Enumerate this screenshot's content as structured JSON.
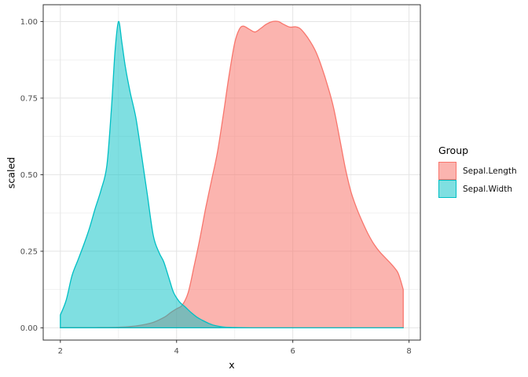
{
  "chart_data": {
    "type": "area",
    "title": "",
    "xlabel": "x",
    "ylabel": "scaled",
    "grid": true,
    "xlim": [
      1.705,
      8.195
    ],
    "ylim": [
      -0.04,
      1.055
    ],
    "x_ticks": [
      {
        "value": 2,
        "label": "2"
      },
      {
        "value": 4,
        "label": "4"
      },
      {
        "value": 6,
        "label": "6"
      },
      {
        "value": 8,
        "label": "8"
      }
    ],
    "x_minor": [
      3,
      5,
      7
    ],
    "y_ticks": [
      {
        "value": 1.0,
        "label": "1.00"
      },
      {
        "value": 0.75,
        "label": "0.75"
      },
      {
        "value": 0.5,
        "label": "0.50"
      },
      {
        "value": 0.25,
        "label": "0.25"
      },
      {
        "value": 0.0,
        "label": "0.00"
      }
    ],
    "y_minor": [
      0.875,
      0.625,
      0.375,
      0.125
    ],
    "legend": {
      "title": "Group",
      "position": "right",
      "entries": [
        {
          "label": "Sepal.Length",
          "stroke": "#F8766D",
          "fill": "rgba(248,118,109,0.55)"
        },
        {
          "label": "Sepal.Width",
          "stroke": "#00BFC4",
          "fill": "rgba(0,191,196,0.5)"
        }
      ]
    },
    "series": [
      {
        "name": "Sepal.Length",
        "stroke": "#F8766D",
        "fill": "rgba(248,118,109,0.55)",
        "points": [
          [
            2.0,
            0.001
          ],
          [
            2.6,
            0.001
          ],
          [
            3.0,
            0.002
          ],
          [
            3.2,
            0.004
          ],
          [
            3.4,
            0.009
          ],
          [
            3.6,
            0.018
          ],
          [
            3.8,
            0.036
          ],
          [
            3.9,
            0.05
          ],
          [
            4.0,
            0.062
          ],
          [
            4.1,
            0.075
          ],
          [
            4.2,
            0.115
          ],
          [
            4.3,
            0.2
          ],
          [
            4.4,
            0.29
          ],
          [
            4.5,
            0.39
          ],
          [
            4.6,
            0.48
          ],
          [
            4.7,
            0.57
          ],
          [
            4.8,
            0.69
          ],
          [
            4.9,
            0.82
          ],
          [
            5.0,
            0.93
          ],
          [
            5.08,
            0.975
          ],
          [
            5.15,
            0.985
          ],
          [
            5.25,
            0.975
          ],
          [
            5.35,
            0.966
          ],
          [
            5.45,
            0.978
          ],
          [
            5.55,
            0.992
          ],
          [
            5.65,
            1.0
          ],
          [
            5.75,
            1.0
          ],
          [
            5.85,
            0.99
          ],
          [
            5.95,
            0.982
          ],
          [
            6.05,
            0.983
          ],
          [
            6.12,
            0.978
          ],
          [
            6.2,
            0.962
          ],
          [
            6.3,
            0.935
          ],
          [
            6.4,
            0.9
          ],
          [
            6.5,
            0.85
          ],
          [
            6.6,
            0.79
          ],
          [
            6.7,
            0.72
          ],
          [
            6.8,
            0.625
          ],
          [
            6.9,
            0.525
          ],
          [
            7.0,
            0.445
          ],
          [
            7.1,
            0.39
          ],
          [
            7.2,
            0.345
          ],
          [
            7.3,
            0.305
          ],
          [
            7.4,
            0.272
          ],
          [
            7.5,
            0.247
          ],
          [
            7.6,
            0.227
          ],
          [
            7.7,
            0.207
          ],
          [
            7.8,
            0.183
          ],
          [
            7.85,
            0.158
          ],
          [
            7.9,
            0.125
          ]
        ]
      },
      {
        "name": "Sepal.Width",
        "stroke": "#00BFC4",
        "fill": "rgba(0,191,196,0.5)",
        "points": [
          [
            2.0,
            0.042
          ],
          [
            2.1,
            0.09
          ],
          [
            2.2,
            0.17
          ],
          [
            2.3,
            0.22
          ],
          [
            2.4,
            0.27
          ],
          [
            2.5,
            0.325
          ],
          [
            2.6,
            0.39
          ],
          [
            2.7,
            0.45
          ],
          [
            2.8,
            0.53
          ],
          [
            2.88,
            0.72
          ],
          [
            2.94,
            0.9
          ],
          [
            3.0,
            1.0
          ],
          [
            3.06,
            0.93
          ],
          [
            3.12,
            0.85
          ],
          [
            3.2,
            0.77
          ],
          [
            3.3,
            0.685
          ],
          [
            3.4,
            0.56
          ],
          [
            3.5,
            0.43
          ],
          [
            3.6,
            0.3
          ],
          [
            3.7,
            0.245
          ],
          [
            3.78,
            0.215
          ],
          [
            3.88,
            0.155
          ],
          [
            3.95,
            0.115
          ],
          [
            4.05,
            0.085
          ],
          [
            4.15,
            0.068
          ],
          [
            4.25,
            0.05
          ],
          [
            4.35,
            0.035
          ],
          [
            4.45,
            0.024
          ],
          [
            4.55,
            0.015
          ],
          [
            4.65,
            0.008
          ],
          [
            4.75,
            0.004
          ],
          [
            4.85,
            0.002
          ],
          [
            5.0,
            0.001
          ],
          [
            5.3,
            0.0
          ],
          [
            6.0,
            0.0
          ],
          [
            7.0,
            0.0
          ],
          [
            7.9,
            0.0
          ]
        ]
      }
    ],
    "style": {
      "panel_border": "#333333",
      "grid_major": "#E4E4E4",
      "grid_minor": "#F1F1F1",
      "tick_color": "#333333",
      "tick_text_color": "#4D4D4D",
      "background": "#FFFFFF"
    }
  }
}
